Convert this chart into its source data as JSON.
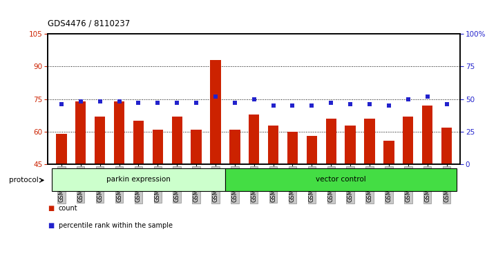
{
  "title": "GDS4476 / 8110237",
  "samples": [
    "GSM729739",
    "GSM729740",
    "GSM729741",
    "GSM729742",
    "GSM729743",
    "GSM729744",
    "GSM729745",
    "GSM729746",
    "GSM729747",
    "GSM729727",
    "GSM729728",
    "GSM729729",
    "GSM729730",
    "GSM729731",
    "GSM729732",
    "GSM729733",
    "GSM729734",
    "GSM729735",
    "GSM729736",
    "GSM729737",
    "GSM729738"
  ],
  "counts": [
    59,
    74,
    67,
    74,
    65,
    61,
    67,
    61,
    93,
    61,
    68,
    63,
    60,
    58,
    66,
    63,
    66,
    56,
    67,
    72,
    62
  ],
  "percentile_ranks_pct": [
    46,
    48,
    48,
    48,
    47,
    47,
    47,
    47,
    52,
    47,
    50,
    45,
    45,
    45,
    47,
    46,
    46,
    45,
    50,
    52,
    46
  ],
  "parkin_count": 9,
  "vector_count": 12,
  "left_ylim": [
    45,
    105
  ],
  "left_yticks": [
    45,
    60,
    75,
    90,
    105
  ],
  "right_ylim": [
    0,
    100
  ],
  "right_yticks": [
    0,
    25,
    50,
    75,
    100
  ],
  "right_yticklabels": [
    "0",
    "25",
    "50",
    "75",
    "100%"
  ],
  "bar_color": "#CC2200",
  "marker_color": "#2222CC",
  "parkin_bg": "#CCFFCC",
  "vector_bg": "#44DD44",
  "protocol_label": "protocol",
  "parkin_label": "parkin expression",
  "vector_label": "vector control",
  "legend_count_label": "count",
  "legend_pct_label": "percentile rank within the sample",
  "axis_color_left": "#CC2200",
  "axis_color_right": "#2222CC",
  "tick_label_bg": "#C8C8C8",
  "bar_width": 0.55,
  "grid_ticks": [
    60,
    75,
    90
  ]
}
